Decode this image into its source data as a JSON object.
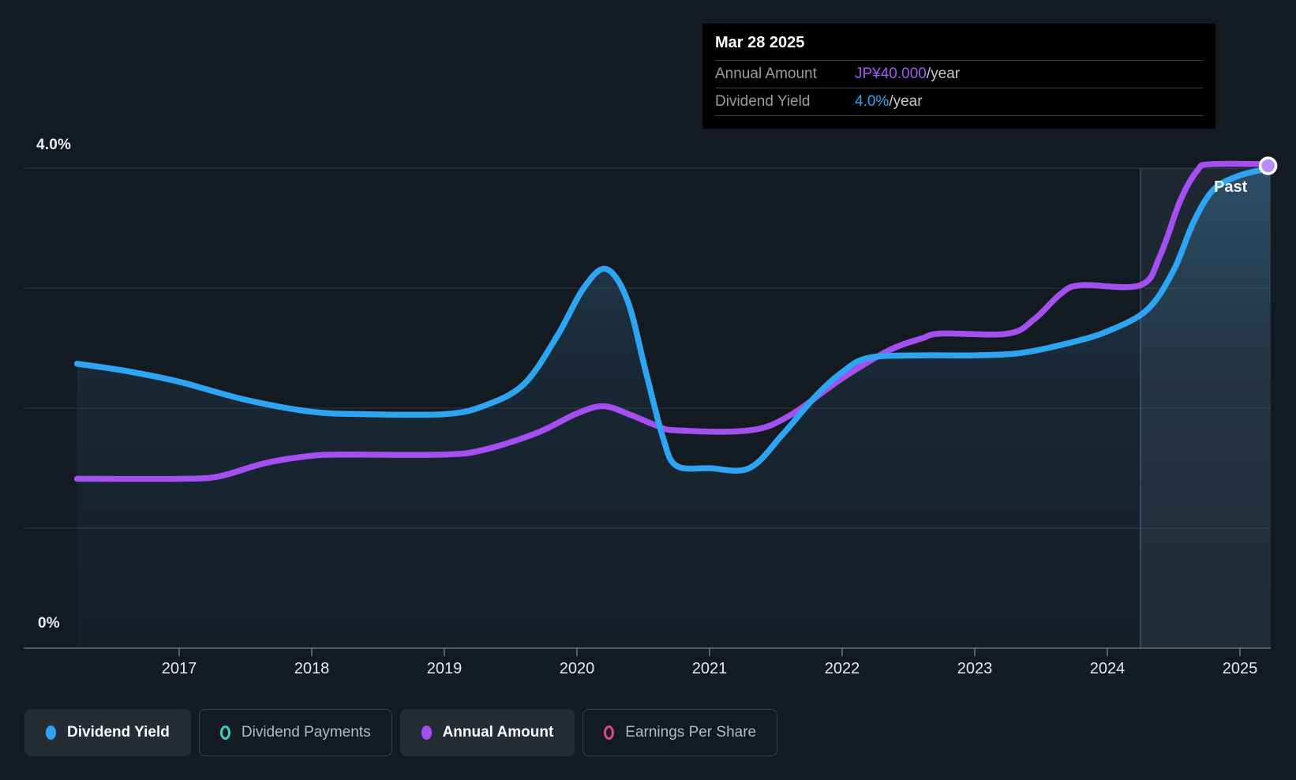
{
  "axis": {
    "top_label": "4.0%",
    "bottom_label": "0%",
    "years": [
      "2017",
      "2018",
      "2019",
      "2020",
      "2021",
      "2022",
      "2023",
      "2024",
      "2025"
    ]
  },
  "past_label": "Past",
  "tooltip": {
    "date": "Mar 28 2025",
    "rows": [
      {
        "label": "Annual Amount",
        "value": "JP¥40.000",
        "suffix": "/year",
        "value_color": "#a558f2"
      },
      {
        "label": "Dividend Yield",
        "value": "4.0%",
        "suffix": "/year",
        "value_color": "#2da5f2"
      }
    ]
  },
  "legend": {
    "items": [
      {
        "label": "Dividend Yield",
        "style": "filled",
        "color": "#2da5f2",
        "active": true
      },
      {
        "label": "Dividend Payments",
        "style": "ring",
        "color": "#3ecfc3",
        "active": false
      },
      {
        "label": "Annual Amount",
        "style": "filled",
        "color": "#a44ff0",
        "active": true
      },
      {
        "label": "Earnings Per Share",
        "style": "ring",
        "color": "#d6487f",
        "active": false
      }
    ]
  },
  "chart_data": {
    "type": "line",
    "title": "Dividend history (yield and annual amount)",
    "x_domain": [
      2016.23,
      2025.23
    ],
    "x_ticks": [
      2017,
      2018,
      2019,
      2020,
      2021,
      2022,
      2023,
      2024,
      2025
    ],
    "percent_axis": {
      "range": [
        0,
        4
      ],
      "gridline_step_pct": 1,
      "top_label": "4.0%",
      "bottom_label": "0%"
    },
    "yen_axis": {
      "range": [
        0,
        40
      ]
    },
    "highlight_from_year": 2024.25,
    "grid": true,
    "legend_position": "bottom",
    "end_marker": {
      "year": 2025.23,
      "series": "Annual Amount"
    },
    "series": [
      {
        "name": "Dividend Yield",
        "unit": "%",
        "axis": "percent",
        "color": "#2da5f2",
        "area_fill": true,
        "points": [
          [
            2016.23,
            2.37
          ],
          [
            2016.6,
            2.31
          ],
          [
            2017.0,
            2.22
          ],
          [
            2017.5,
            2.07
          ],
          [
            2018.0,
            1.97
          ],
          [
            2018.4,
            1.95
          ],
          [
            2019.0,
            1.95
          ],
          [
            2019.3,
            2.02
          ],
          [
            2019.6,
            2.2
          ],
          [
            2019.85,
            2.6
          ],
          [
            2020.05,
            3.0
          ],
          [
            2020.22,
            3.16
          ],
          [
            2020.38,
            2.9
          ],
          [
            2020.52,
            2.3
          ],
          [
            2020.65,
            1.75
          ],
          [
            2020.75,
            1.52
          ],
          [
            2021.0,
            1.5
          ],
          [
            2021.3,
            1.5
          ],
          [
            2021.55,
            1.78
          ],
          [
            2021.8,
            2.1
          ],
          [
            2022.0,
            2.3
          ],
          [
            2022.2,
            2.42
          ],
          [
            2022.6,
            2.44
          ],
          [
            2023.0,
            2.44
          ],
          [
            2023.35,
            2.46
          ],
          [
            2023.7,
            2.54
          ],
          [
            2024.0,
            2.64
          ],
          [
            2024.3,
            2.82
          ],
          [
            2024.5,
            3.15
          ],
          [
            2024.65,
            3.55
          ],
          [
            2024.8,
            3.82
          ],
          [
            2025.0,
            3.94
          ],
          [
            2025.23,
            4.0
          ]
        ]
      },
      {
        "name": "Annual Amount",
        "unit": "JP¥/year",
        "axis": "yen",
        "color": "#a44ff0",
        "area_fill": false,
        "points": [
          [
            2016.23,
            14
          ],
          [
            2017.0,
            14
          ],
          [
            2017.3,
            14.2
          ],
          [
            2017.65,
            15.3
          ],
          [
            2018.0,
            15.9
          ],
          [
            2018.25,
            16
          ],
          [
            2019.0,
            16
          ],
          [
            2019.3,
            16.4
          ],
          [
            2019.7,
            17.8
          ],
          [
            2020.0,
            19.4
          ],
          [
            2020.2,
            20
          ],
          [
            2020.4,
            19.3
          ],
          [
            2020.6,
            18.4
          ],
          [
            2020.75,
            18
          ],
          [
            2021.3,
            18
          ],
          [
            2021.6,
            19.2
          ],
          [
            2022.0,
            22.3
          ],
          [
            2022.35,
            24.6
          ],
          [
            2022.6,
            25.6
          ],
          [
            2022.75,
            26
          ],
          [
            2023.25,
            26
          ],
          [
            2023.45,
            27.2
          ],
          [
            2023.65,
            29.3
          ],
          [
            2023.8,
            30
          ],
          [
            2024.25,
            30
          ],
          [
            2024.4,
            32.5
          ],
          [
            2024.55,
            37
          ],
          [
            2024.68,
            39.5
          ],
          [
            2024.78,
            40
          ],
          [
            2025.23,
            40
          ]
        ]
      }
    ]
  }
}
